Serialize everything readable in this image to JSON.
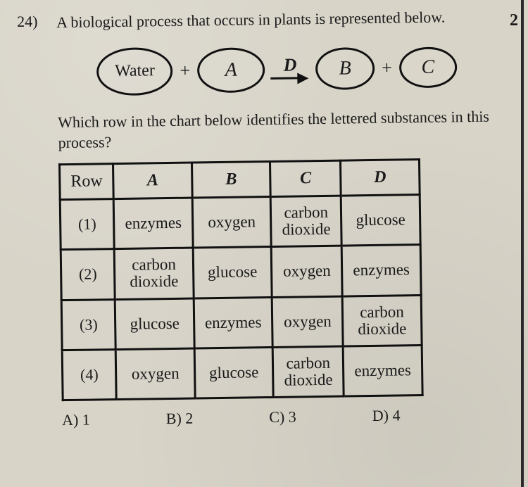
{
  "page": {
    "top_right_fragment": "2"
  },
  "question": {
    "number": "24)",
    "stem": "A biological process that occurs in plants is represented below.",
    "sub": "Which row in the chart below identifies the lettered substances in this process?"
  },
  "diagram": {
    "nodes": {
      "water": "Water",
      "a": "A",
      "b": "B",
      "c": "C"
    },
    "arrow_label": "D",
    "plus": "+"
  },
  "table": {
    "headers": {
      "row": "Row",
      "a": "A",
      "b": "B",
      "c": "C",
      "d": "D"
    },
    "rows": [
      {
        "label": "(1)",
        "a": "enzymes",
        "b": "oxygen",
        "c": "carbon\ndioxide",
        "d": "glucose"
      },
      {
        "label": "(2)",
        "a": "carbon\ndioxide",
        "b": "glucose",
        "c": "oxygen",
        "d": "enzymes"
      },
      {
        "label": "(3)",
        "a": "glucose",
        "b": "enzymes",
        "c": "oxygen",
        "d": "carbon\ndioxide"
      },
      {
        "label": "(4)",
        "a": "oxygen",
        "b": "glucose",
        "c": "carbon\ndioxide",
        "d": "enzymes"
      }
    ]
  },
  "choices": {
    "a": "A)  1",
    "b": "B)  2",
    "c": "C)  3",
    "d": "D)  4"
  },
  "colors": {
    "paper": "#d8d4c8",
    "ink": "#1a1a1a",
    "border": "#111111"
  }
}
